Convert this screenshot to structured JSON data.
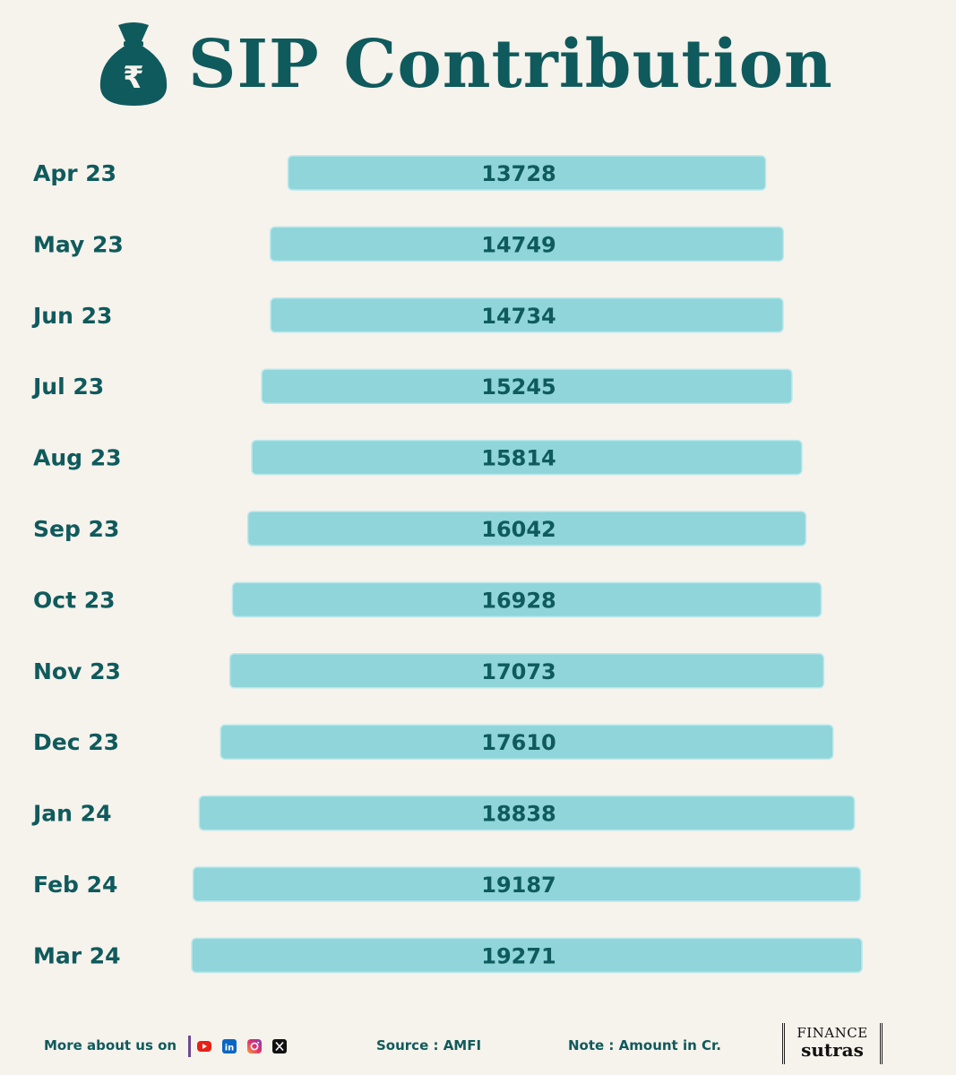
{
  "header": {
    "title": "SIP Contribution",
    "icon": "money-bag-rupee-icon",
    "icon_glyph": "₹"
  },
  "colors": {
    "background": "#f6f2ec",
    "bar_fill": "#8fd5da",
    "text": "#0f5a5c"
  },
  "chart_data": {
    "type": "bar",
    "orientation": "horizontal",
    "title": "SIP Contribution",
    "categories": [
      "Apr 23",
      "May 23",
      "Jun 23",
      "Jul 23",
      "Aug 23",
      "Sep 23",
      "Oct 23",
      "Nov 23",
      "Dec 23",
      "Jan 24",
      "Feb 24",
      "Mar 24"
    ],
    "values": [
      13728,
      14749,
      14734,
      15245,
      15814,
      16042,
      16928,
      17073,
      17610,
      18838,
      19187,
      19271
    ],
    "data_labels": [
      "13728",
      "14749",
      "14734",
      "15245",
      "15814",
      "16042",
      "16928",
      "17073",
      "17610",
      "18838",
      "19187",
      "19271"
    ],
    "xlabel": "",
    "ylabel": "",
    "grid": false,
    "legend": "none",
    "bar_alignment": "centered"
  },
  "footer": {
    "more_label": "More about us on",
    "socials": [
      "youtube-icon",
      "linkedin-icon",
      "instagram-icon",
      "x-icon"
    ],
    "source": "Source : AMFI",
    "note": "Note : Amount in Cr.",
    "brand_top": "FINANCE",
    "brand_bottom": "sutras"
  }
}
